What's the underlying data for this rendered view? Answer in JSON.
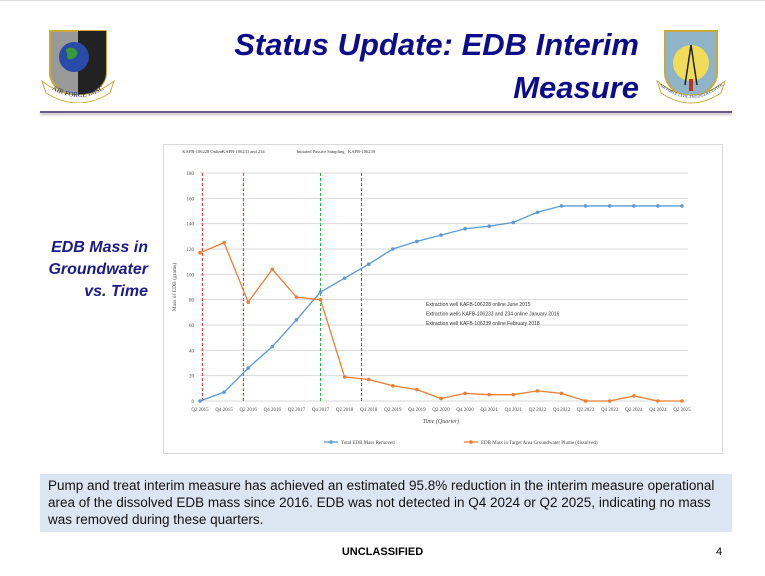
{
  "header": {
    "title": "Status Update: EDB Interim Measure",
    "left_logo_text": "AIR FORCE IMSC",
    "right_logo_text": "AIR FORCE CIVIL ENGINEER CENTER"
  },
  "side_label": {
    "lines": [
      "EDB Mass in",
      "Groundwater",
      "vs. Time"
    ]
  },
  "chart_data": {
    "type": "line",
    "xlabel": "Time (Quarter)",
    "ylabel": "Mass of EDB (grams)",
    "ylim": [
      0,
      180
    ],
    "yticks": [
      0,
      20,
      40,
      60,
      80,
      100,
      120,
      140,
      160,
      180
    ],
    "grid": true,
    "legend_placement": "bottom",
    "categories": [
      "Q2 2015",
      "Q4 2015",
      "Q2 2016",
      "Q4 2016",
      "Q2 2017",
      "Q4 2017",
      "Q2 2018",
      "Q4 2018",
      "Q2 2019",
      "Q4 2019",
      "Q2 2020",
      "Q4 2020",
      "Q2 2021",
      "Q4 2021",
      "Q2 2022",
      "Q4 2022",
      "Q2 2023",
      "Q4 2023",
      "Q2 2024",
      "Q4 2024",
      "Q2 2025"
    ],
    "series": [
      {
        "name": "Total EDB Mass Removed",
        "color": "#5b9bd5",
        "values": [
          0,
          7,
          26,
          43,
          64,
          86,
          97,
          108,
          120,
          126,
          131,
          136,
          138,
          141,
          149,
          154,
          154,
          154,
          154,
          154,
          154
        ]
      },
      {
        "name": "EDB Mass in Target Area Groundwater Plume (dissolved)",
        "color": "#ed7d31",
        "values": [
          117,
          125,
          78,
          104,
          82,
          80,
          19,
          17,
          12,
          9,
          2,
          6,
          5,
          5,
          8,
          6,
          0,
          0,
          4,
          0,
          0
        ]
      }
    ],
    "events": [
      {
        "label": "KAFB-106228 Online",
        "at_index": 0.1,
        "color": "#e03030"
      },
      {
        "label": "KAFB-106233 and 234",
        "at_index": 1.8,
        "color": "#e03030"
      },
      {
        "label": "Initiated Passive Sampling",
        "at_index": 5.0,
        "color": "#30b050"
      },
      {
        "label": "KAFB-106239",
        "at_index": 6.7,
        "color": "#e03030"
      }
    ],
    "annotations": [
      "Extraction well KAFB-106228 online June 2015",
      "Extraction wells KAFB-106233 and 234 online January 2016",
      "Extraction well KAFB-106239 online February 2018"
    ]
  },
  "summary": "Pump and treat interim measure has achieved an estimated 95.8% reduction in the interim measure operational area of the dissolved EDB mass since 2016. EDB was not detected in Q4 2024 or Q2 2025, indicating no mass was removed during these quarters.",
  "footer": {
    "classification": "UNCLASSIFIED",
    "page": "4"
  }
}
